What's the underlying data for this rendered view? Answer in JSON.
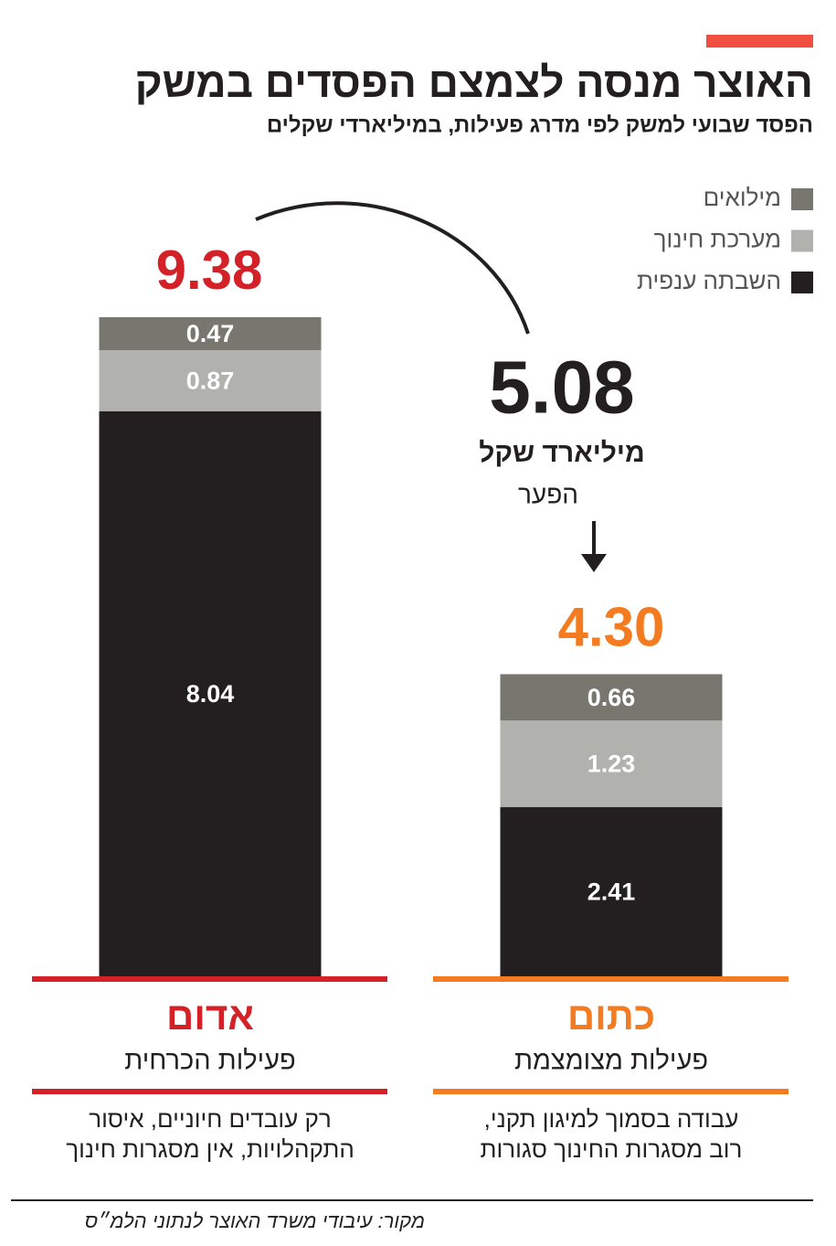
{
  "chart_data": {
    "type": "stacked_bar",
    "title": "האוצר מנסה לצמצם הפסדים במשק",
    "subtitle": "הפסד שבועי למשק לפי מדרג פעילות, במיליארדי שקלים",
    "categories": [
      "אדום",
      "כתום"
    ],
    "category_colors": [
      "#d42027",
      "#f47b20"
    ],
    "category_subtitles": [
      "פעילות הכרחית",
      "פעילות מצומצמת"
    ],
    "category_descriptions": [
      [
        "רק עובדים חיוניים, איסור",
        "התקהלויות, אין מסגרות חינוך"
      ],
      [
        "עבודה בסמוך למיגון תקני,",
        "רוב מסגרות החינוך סגורות"
      ]
    ],
    "series": [
      {
        "name": "השבתה ענפית",
        "color": "#231f20",
        "values": [
          8.04,
          2.41
        ]
      },
      {
        "name": "מערכת חינוך",
        "color": "#b1b1ad",
        "values": [
          0.87,
          1.23
        ]
      },
      {
        "name": "מילואים",
        "color": "#77766f",
        "values": [
          0.47,
          0.66
        ]
      }
    ],
    "totals": {
      "values": [
        9.38,
        4.3
      ],
      "value_labels": [
        "9.38",
        "4.30"
      ]
    },
    "gap": {
      "value": 5.08,
      "unit": "מיליארד שקל",
      "label": "הפער"
    },
    "source": "מקור: עיבודי משרד האוצר לנתוני הלמ״ס"
  }
}
